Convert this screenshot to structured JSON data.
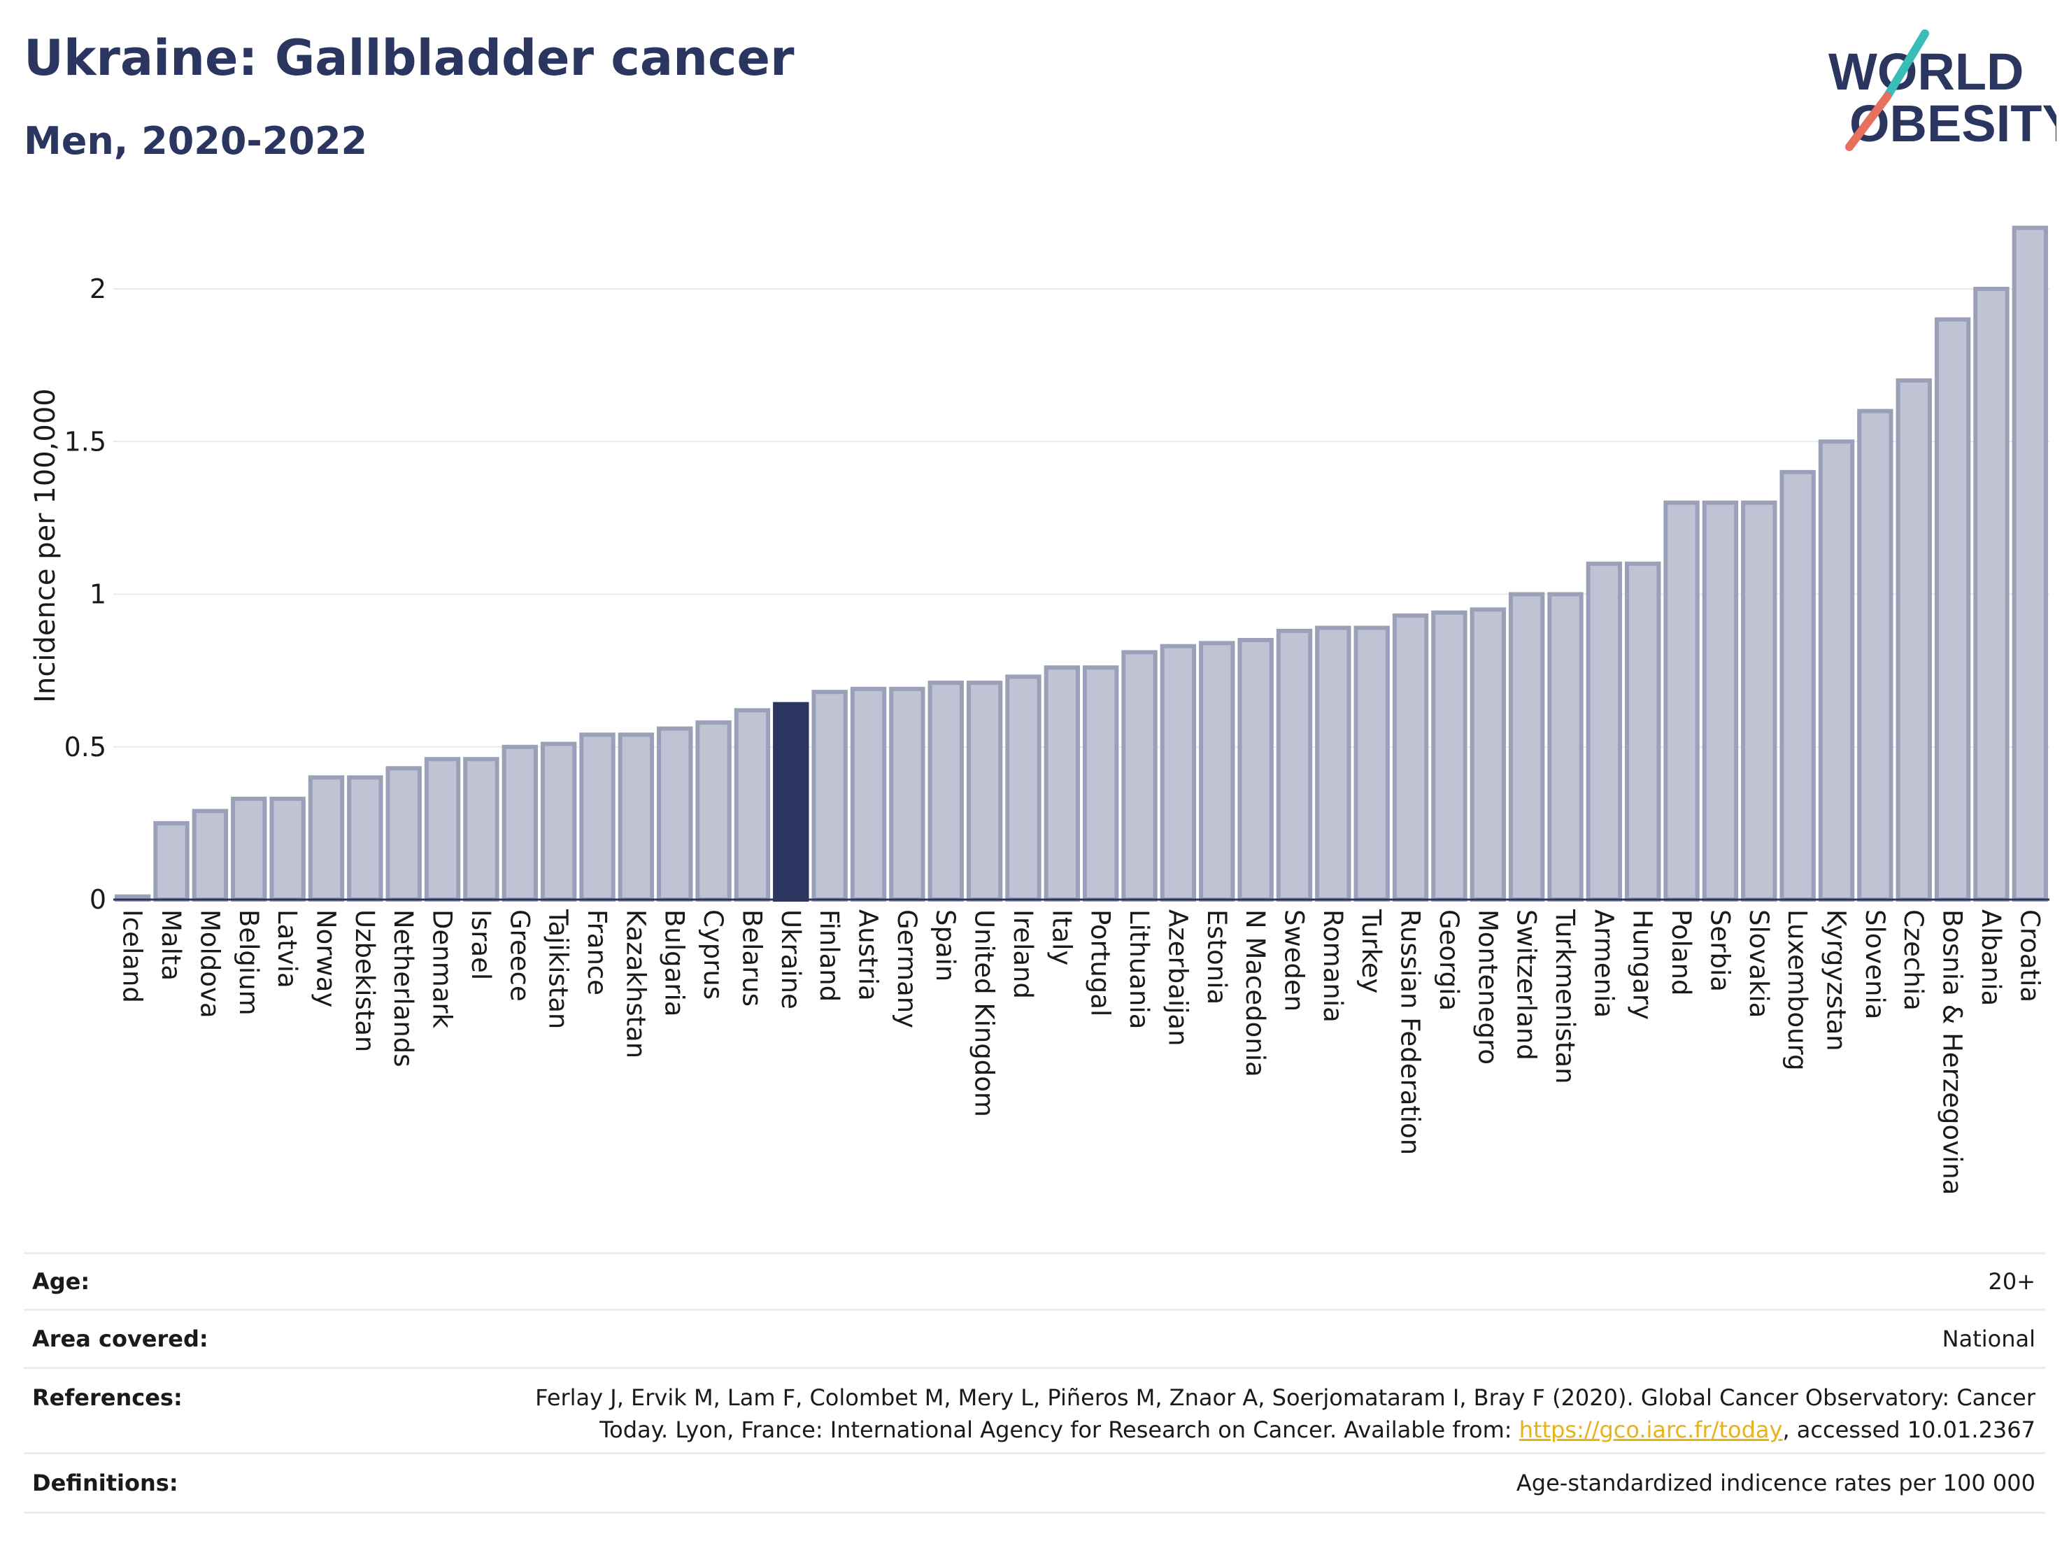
{
  "header": {
    "title": "Ukraine: Gallbladder cancer",
    "subtitle": "Men, 2020-2022"
  },
  "logo": {
    "line1": "WORLD",
    "line2": "OBESITY"
  },
  "colors": {
    "bar": "#bfc3d3",
    "bar_stroke": "#9aa0b8",
    "highlight": "#2a3560",
    "grid": "#e6e9ee",
    "text": "#2a3560",
    "logo_teal": "#3bbcb6",
    "logo_coral": "#e8705f"
  },
  "chart_data": {
    "type": "bar",
    "ylabel": "Incidence per 100,000",
    "ylim": [
      0,
      2.2
    ],
    "yticks": [
      0,
      0.5,
      1,
      1.5,
      2
    ],
    "ytick_labels": [
      "0",
      "0.5",
      "1",
      "1.5",
      "2"
    ],
    "highlight": "Ukraine",
    "categories": [
      "Iceland",
      "Malta",
      "Moldova",
      "Belgium",
      "Latvia",
      "Norway",
      "Uzbekistan",
      "Netherlands",
      "Denmark",
      "Israel",
      "Greece",
      "Tajikistan",
      "France",
      "Kazakhstan",
      "Bulgaria",
      "Cyprus",
      "Belarus",
      "Ukraine",
      "Finland",
      "Austria",
      "Germany",
      "Spain",
      "United Kingdom",
      "Ireland",
      "Italy",
      "Portugal",
      "Lithuania",
      "Azerbaijan",
      "Estonia",
      "N Macedonia",
      "Sweden",
      "Romania",
      "Turkey",
      "Russian Federation",
      "Georgia",
      "Montenegro",
      "Switzerland",
      "Turkmenistan",
      "Armenia",
      "Hungary",
      "Poland",
      "Serbia",
      "Slovakia",
      "Luxembourg",
      "Kyrgyzstan",
      "Slovenia",
      "Czechia",
      "Bosnia & Herzegovina",
      "Albania",
      "Croatia"
    ],
    "values": [
      0.01,
      0.25,
      0.29,
      0.33,
      0.33,
      0.4,
      0.4,
      0.43,
      0.46,
      0.46,
      0.5,
      0.51,
      0.54,
      0.54,
      0.56,
      0.58,
      0.62,
      0.64,
      0.68,
      0.69,
      0.69,
      0.71,
      0.71,
      0.73,
      0.76,
      0.76,
      0.81,
      0.83,
      0.84,
      0.85,
      0.88,
      0.89,
      0.89,
      0.93,
      0.94,
      0.95,
      1.0,
      1.0,
      1.1,
      1.1,
      1.3,
      1.3,
      1.3,
      1.4,
      1.5,
      1.6,
      1.7,
      1.9,
      2.0,
      2.2
    ]
  },
  "meta": [
    {
      "label": "Age:",
      "value": "20+"
    },
    {
      "label": "Area covered:",
      "value": "National"
    },
    {
      "label": "References:",
      "value_pre": "Ferlay J, Ervik M, Lam F, Colombet M, Mery L, Piñeros M, Znaor A, Soerjomataram I, Bray F (2020). Global Cancer Observatory: Cancer Today. Lyon, France: International Agency for Research on Cancer. Available from: ",
      "link": "https://gco.iarc.fr/today",
      "value_post": ", accessed 10.01.2367"
    },
    {
      "label": "Definitions:",
      "value": "Age-standardized indicence rates per 100 000"
    }
  ]
}
